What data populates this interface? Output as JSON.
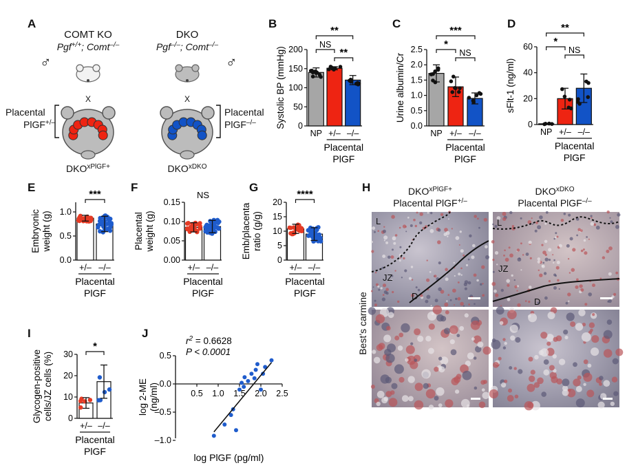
{
  "panel_letters": [
    "A",
    "B",
    "C",
    "D",
    "E",
    "F",
    "G",
    "H",
    "I",
    "J"
  ],
  "panel_a": {
    "left_title": "COMT KO",
    "left_genotype_base": "Pgf",
    "left_genotype_pgf_sup": "+/+",
    "left_genotype_mid": "; Comt",
    "left_genotype_comt_sup": "–/–",
    "right_title": "DKO",
    "right_genotype_pgf_sup": "–/–",
    "right_genotype_comt_sup": "–/–",
    "cross": "X",
    "male_symbol": "♂",
    "left_placental_line1": "Placental",
    "left_placental_line2_base": "PlGF",
    "left_placental_line2_sup": "+/–",
    "right_placental_line2_sup": "–/–",
    "left_caption_base": "DKO",
    "left_caption_sup": "xPlGF+",
    "right_caption_sup": "xDKO"
  },
  "colors": {
    "np": "#a6a6a6",
    "het": "#ee2412",
    "ko": "#1253c6",
    "het_dots": "#e53b25",
    "ko_dots": "#1f5ccc"
  },
  "group_labels": {
    "np": "NP",
    "het": "+/–",
    "ko": "–/–"
  },
  "placental_label": {
    "line1": "Placental",
    "line2": "PlGF"
  },
  "chart_data": [
    {
      "panel": "B",
      "type": "bar",
      "categories": [
        "NP",
        "+/–",
        "–/–"
      ],
      "values": [
        140,
        151,
        120
      ],
      "sd": [
        12,
        4,
        12
      ],
      "ylabel": "Systolic BP (mmHg)",
      "ylim": [
        0,
        200
      ],
      "yticks": [
        "0",
        "50",
        "100",
        "150",
        "200"
      ],
      "significance": [
        {
          "from": 0,
          "to": 2,
          "label": "**"
        },
        {
          "from": 0,
          "to": 1,
          "label": "NS"
        },
        {
          "from": 1,
          "to": 2,
          "label": "**"
        }
      ]
    },
    {
      "panel": "C",
      "type": "bar",
      "categories": [
        "NP",
        "+/–",
        "–/–"
      ],
      "values": [
        1.72,
        1.28,
        0.9
      ],
      "sd": [
        0.28,
        0.32,
        0.18
      ],
      "ylabel": "Urine albumin/Cr",
      "ylim": [
        0,
        2.5
      ],
      "yticks": [
        "0.0",
        "0.5",
        "1.0",
        "1.5",
        "2.0",
        "2.5"
      ],
      "significance": [
        {
          "from": 0,
          "to": 2,
          "label": "***"
        },
        {
          "from": 0,
          "to": 1,
          "label": "*"
        },
        {
          "from": 1,
          "to": 2,
          "label": "NS"
        }
      ]
    },
    {
      "panel": "D",
      "type": "bar",
      "categories": [
        "NP",
        "+/–",
        "–/–"
      ],
      "values": [
        0.6,
        20,
        28
      ],
      "sd": [
        0.3,
        8,
        11
      ],
      "ylabel": "sFlt-1 (ng/ml)",
      "ylim": [
        0,
        60
      ],
      "yticks": [
        "0",
        "20",
        "40",
        "60"
      ],
      "significance": [
        {
          "from": 0,
          "to": 2,
          "label": "**"
        },
        {
          "from": 0,
          "to": 1,
          "label": "*"
        },
        {
          "from": 1,
          "to": 2,
          "label": "NS"
        }
      ]
    },
    {
      "panel": "E",
      "type": "bar",
      "categories": [
        "+/–",
        "–/–"
      ],
      "values": [
        0.87,
        0.75
      ],
      "sd": [
        0.06,
        0.16
      ],
      "ylabel": "Embryonic weight (g)",
      "ylim": [
        0,
        1.2
      ],
      "yticks": [
        "0.0",
        "0.5",
        "1.0"
      ],
      "significance": [
        {
          "from": 0,
          "to": 1,
          "label": "***"
        }
      ]
    },
    {
      "panel": "F",
      "type": "bar",
      "categories": [
        "+/–",
        "–/–"
      ],
      "values": [
        0.085,
        0.087
      ],
      "sd": [
        0.012,
        0.016
      ],
      "ylabel": "Placental weight (g)",
      "ylim": [
        0,
        0.15
      ],
      "yticks": [
        "0.00",
        "0.05",
        "0.10",
        "0.15"
      ],
      "significance": [
        {
          "from": 0,
          "to": 1,
          "label": "NS"
        }
      ]
    },
    {
      "panel": "G",
      "type": "bar",
      "categories": [
        "+/–",
        "–/–"
      ],
      "values": [
        10.8,
        9
      ],
      "sd": [
        1.6,
        2.2
      ],
      "ylabel": "Emb/placenta ratio (g/g)",
      "ylim": [
        0,
        20
      ],
      "yticks": [
        "0",
        "5",
        "10",
        "15",
        "20"
      ],
      "significance": [
        {
          "from": 0,
          "to": 1,
          "label": "****"
        }
      ]
    },
    {
      "panel": "I",
      "type": "bar",
      "categories": [
        "+/–",
        "–/–"
      ],
      "values": [
        7.2,
        17.2
      ],
      "sd": [
        2.5,
        7.8
      ],
      "ylabel": "Glycogen-positive cells/JZ cells (%)",
      "ylim": [
        0,
        30
      ],
      "yticks": [
        "0",
        "10",
        "20",
        "30"
      ],
      "significance": [
        {
          "from": 0,
          "to": 1,
          "label": "*"
        }
      ]
    },
    {
      "panel": "J",
      "type": "scatter",
      "x": [
        0.9,
        1.15,
        1.3,
        1.35,
        1.42,
        1.5,
        1.55,
        1.6,
        1.62,
        1.7,
        1.78,
        1.85,
        1.88,
        1.92,
        2.0,
        2.05,
        2.1,
        2.25
      ],
      "y": [
        -0.92,
        -0.72,
        -0.55,
        -0.45,
        -0.82,
        -0.1,
        0.02,
        -0.05,
        0.12,
        0.05,
        0.18,
        0.1,
        0.25,
        0.35,
        -0.1,
        0.18,
        0.3,
        0.42
      ],
      "xlabel": "log PlGF (pg/ml)",
      "ylabel": "log 2-ME (ng/ml)",
      "xticks": [
        "0.5",
        "1.0",
        "1.5",
        "2.0",
        "2.5"
      ],
      "yticks": [
        "0.5",
        "0.0",
        "–0.5",
        "–1.0"
      ],
      "xlim": [
        0,
        2.5
      ],
      "ylim": [
        -1.0,
        0.5
      ],
      "r2": "0.6628",
      "p": "P < 0.0001",
      "fit": [
        [
          0.9,
          -0.85
        ],
        [
          2.25,
          0.38
        ]
      ]
    }
  ],
  "panel_h": {
    "left_title_base": "DKO",
    "left_title_sup": "xPlGF+",
    "left_title_line2_base": "Placental PlGF",
    "left_title_line2_sup": "+/–",
    "right_title_base": "DKO",
    "right_title_sup": "xDKO",
    "right_title_line2_sup": "–/–",
    "stain_label": "Best’s carmine",
    "region_L": "L",
    "region_JZ": "JZ",
    "region_D": "D"
  }
}
